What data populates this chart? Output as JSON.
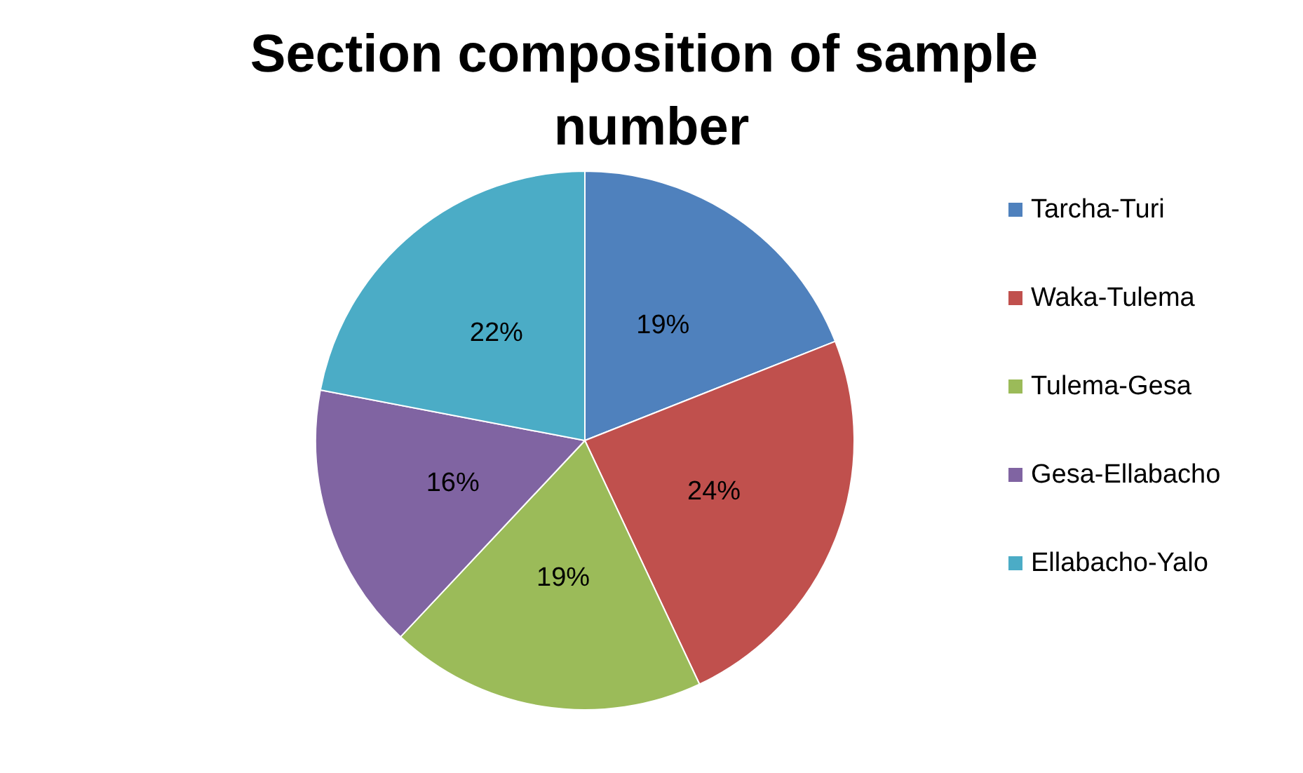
{
  "chart_data": {
    "type": "pie",
    "title": "Section composition of sample number",
    "categories": [
      "Tarcha-Turi",
      "Waka-Tulema",
      "Tulema-Gesa",
      "Gesa-Ellabacho",
      "Ellabacho-Yalo"
    ],
    "values": [
      19,
      24,
      19,
      16,
      22
    ],
    "colors": [
      "#4f81bd",
      "#c0504d",
      "#9bbb59",
      "#8064a2",
      "#4bacc6"
    ],
    "value_labels": [
      "19%",
      "24%",
      "19%",
      "16%",
      "22%"
    ],
    "legend": "right"
  }
}
